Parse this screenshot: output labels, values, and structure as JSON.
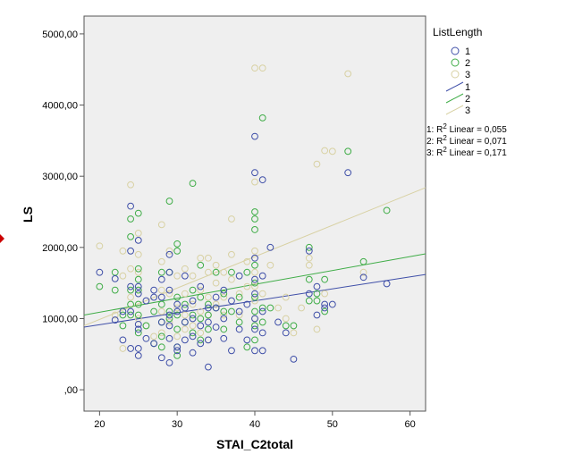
{
  "chart_data": {
    "type": "scatter",
    "title": "",
    "xlabel": "STAI_C2total",
    "ylabel": "LS",
    "xlim": [
      18,
      62
    ],
    "ylim": [
      -300,
      5250
    ],
    "x_ticks": [
      20,
      30,
      40,
      50,
      60
    ],
    "x_tick_labels": [
      "20",
      "30",
      "40",
      "50",
      "60"
    ],
    "y_ticks": [
      0,
      1000,
      2000,
      3000,
      4000,
      5000
    ],
    "y_tick_labels": [
      ",00",
      "1000,00",
      "2000,00",
      "3000,00",
      "4000,00",
      "5000,00"
    ],
    "legend": {
      "title": "ListLength",
      "position": "right",
      "marker_labels": [
        "1",
        "2",
        "3"
      ],
      "line_labels": [
        "1",
        "2",
        "3"
      ],
      "stats": [
        {
          "prefix": "1: R",
          "sup": "2",
          "suffix": " Linear = 0,055"
        },
        {
          "prefix": "2: R",
          "sup": "2",
          "suffix": " Linear = 0,071"
        },
        {
          "prefix": "3: R",
          "sup": "2",
          "suffix": " Linear = 0,171"
        }
      ]
    },
    "colors": {
      "plot_background": "#efefef",
      "series_1": "#3f4fa8",
      "series_2": "#40ad48",
      "series_3": "#d8d1a3"
    },
    "series": [
      {
        "name": "1",
        "marker": "circle-open",
        "fit_line": {
          "x": [
            18,
            62
          ],
          "y": [
            880,
            1620
          ]
        },
        "points": [
          [
            20,
            1650
          ],
          [
            22,
            1560
          ],
          [
            22,
            980
          ],
          [
            23,
            1100
          ],
          [
            23,
            700
          ],
          [
            24,
            2580
          ],
          [
            24,
            1950
          ],
          [
            24,
            1450
          ],
          [
            24,
            1100
          ],
          [
            24,
            580
          ],
          [
            25,
            2100
          ],
          [
            25,
            1450
          ],
          [
            25,
            1350
          ],
          [
            25,
            920
          ],
          [
            25,
            850
          ],
          [
            25,
            580
          ],
          [
            25,
            480
          ],
          [
            26,
            720
          ],
          [
            26,
            1250
          ],
          [
            27,
            1400
          ],
          [
            27,
            1300
          ],
          [
            27,
            650
          ],
          [
            28,
            1550
          ],
          [
            28,
            1300
          ],
          [
            28,
            950
          ],
          [
            28,
            450
          ],
          [
            29,
            1900
          ],
          [
            29,
            1650
          ],
          [
            29,
            1400
          ],
          [
            29,
            1050
          ],
          [
            29,
            900
          ],
          [
            29,
            720
          ],
          [
            29,
            380
          ],
          [
            30,
            1200
          ],
          [
            30,
            1100
          ],
          [
            30,
            600
          ],
          [
            30,
            550
          ],
          [
            31,
            1600
          ],
          [
            31,
            1150
          ],
          [
            31,
            950
          ],
          [
            31,
            700
          ],
          [
            32,
            1250
          ],
          [
            32,
            1000
          ],
          [
            32,
            750
          ],
          [
            32,
            520
          ],
          [
            33,
            1450
          ],
          [
            33,
            900
          ],
          [
            33,
            650
          ],
          [
            34,
            1150
          ],
          [
            34,
            950
          ],
          [
            34,
            700
          ],
          [
            34,
            320
          ],
          [
            35,
            1300
          ],
          [
            35,
            1150
          ],
          [
            35,
            880
          ],
          [
            36,
            1400
          ],
          [
            36,
            1000
          ],
          [
            36,
            720
          ],
          [
            37,
            1250
          ],
          [
            37,
            550
          ],
          [
            38,
            1600
          ],
          [
            38,
            1100
          ],
          [
            38,
            850
          ],
          [
            39,
            1200
          ],
          [
            39,
            700
          ],
          [
            40,
            3560
          ],
          [
            40,
            3050
          ],
          [
            40,
            1850
          ],
          [
            40,
            1550
          ],
          [
            40,
            1350
          ],
          [
            40,
            1000
          ],
          [
            40,
            850
          ],
          [
            40,
            550
          ],
          [
            41,
            2950
          ],
          [
            41,
            1600
          ],
          [
            41,
            1100
          ],
          [
            41,
            800
          ],
          [
            41,
            550
          ],
          [
            42,
            2000
          ],
          [
            43,
            950
          ],
          [
            44,
            800
          ],
          [
            45,
            430
          ],
          [
            47,
            1950
          ],
          [
            47,
            1350
          ],
          [
            48,
            1450
          ],
          [
            48,
            1050
          ],
          [
            49,
            1200
          ],
          [
            49,
            1150
          ],
          [
            50,
            1200
          ],
          [
            52,
            3050
          ],
          [
            54,
            1580
          ],
          [
            57,
            1490
          ]
        ]
      },
      {
        "name": "2",
        "marker": "circle-open",
        "fit_line": {
          "x": [
            18,
            62
          ],
          "y": [
            1050,
            1910
          ]
        },
        "points": [
          [
            20,
            1450
          ],
          [
            22,
            1650
          ],
          [
            22,
            1400
          ],
          [
            23,
            1050
          ],
          [
            23,
            900
          ],
          [
            24,
            2400
          ],
          [
            24,
            2150
          ],
          [
            24,
            1400
          ],
          [
            24,
            1200
          ],
          [
            24,
            1050
          ],
          [
            25,
            2480
          ],
          [
            25,
            1700
          ],
          [
            25,
            1550
          ],
          [
            25,
            1400
          ],
          [
            25,
            1200
          ],
          [
            25,
            1050
          ],
          [
            25,
            800
          ],
          [
            26,
            900
          ],
          [
            27,
            650
          ],
          [
            27,
            1100
          ],
          [
            28,
            1650
          ],
          [
            28,
            1200
          ],
          [
            28,
            950
          ],
          [
            28,
            750
          ],
          [
            28,
            600
          ],
          [
            29,
            2650
          ],
          [
            29,
            1650
          ],
          [
            29,
            1100
          ],
          [
            29,
            1000
          ],
          [
            30,
            2050
          ],
          [
            30,
            1950
          ],
          [
            30,
            1300
          ],
          [
            30,
            1050
          ],
          [
            30,
            850
          ],
          [
            30,
            600
          ],
          [
            30,
            480
          ],
          [
            31,
            1200
          ],
          [
            31,
            950
          ],
          [
            32,
            2900
          ],
          [
            32,
            1400
          ],
          [
            32,
            1050
          ],
          [
            32,
            800
          ],
          [
            33,
            1750
          ],
          [
            33,
            1300
          ],
          [
            33,
            1000
          ],
          [
            33,
            700
          ],
          [
            34,
            1200
          ],
          [
            34,
            1050
          ],
          [
            34,
            850
          ],
          [
            35,
            1650
          ],
          [
            35,
            1150
          ],
          [
            36,
            1350
          ],
          [
            36,
            1100
          ],
          [
            36,
            850
          ],
          [
            37,
            1650
          ],
          [
            37,
            1100
          ],
          [
            38,
            1300
          ],
          [
            38,
            950
          ],
          [
            39,
            1650
          ],
          [
            39,
            600
          ],
          [
            40,
            2500
          ],
          [
            40,
            2400
          ],
          [
            40,
            2250
          ],
          [
            40,
            1750
          ],
          [
            40,
            1500
          ],
          [
            40,
            1300
          ],
          [
            40,
            1100
          ],
          [
            40,
            900
          ],
          [
            40,
            700
          ],
          [
            41,
            3820
          ],
          [
            41,
            1150
          ],
          [
            41,
            950
          ],
          [
            42,
            1150
          ],
          [
            44,
            900
          ],
          [
            45,
            900
          ],
          [
            47,
            2000
          ],
          [
            47,
            1550
          ],
          [
            47,
            1250
          ],
          [
            48,
            1350
          ],
          [
            48,
            1250
          ],
          [
            49,
            1550
          ],
          [
            49,
            1100
          ],
          [
            52,
            3350
          ],
          [
            54,
            1800
          ],
          [
            57,
            2520
          ]
        ]
      },
      {
        "name": "3",
        "marker": "circle-open",
        "fit_line": {
          "x": [
            18,
            62
          ],
          "y": [
            900,
            2840
          ]
        },
        "points": [
          [
            20,
            2020
          ],
          [
            22,
            1050
          ],
          [
            23,
            1950
          ],
          [
            23,
            1600
          ],
          [
            23,
            580
          ],
          [
            24,
            2880
          ],
          [
            24,
            1700
          ],
          [
            24,
            1300
          ],
          [
            25,
            2200
          ],
          [
            25,
            1900
          ],
          [
            25,
            1650
          ],
          [
            25,
            1400
          ],
          [
            25,
            1000
          ],
          [
            26,
            900
          ],
          [
            27,
            750
          ],
          [
            28,
            2320
          ],
          [
            28,
            1800
          ],
          [
            28,
            1400
          ],
          [
            28,
            1100
          ],
          [
            28,
            800
          ],
          [
            29,
            1950
          ],
          [
            29,
            1350
          ],
          [
            29,
            950
          ],
          [
            30,
            1600
          ],
          [
            30,
            1150
          ],
          [
            30,
            750
          ],
          [
            31,
            1700
          ],
          [
            31,
            1350
          ],
          [
            31,
            1050
          ],
          [
            31,
            850
          ],
          [
            32,
            1600
          ],
          [
            32,
            1200
          ],
          [
            32,
            900
          ],
          [
            33,
            1850
          ],
          [
            33,
            1400
          ],
          [
            33,
            1100
          ],
          [
            33,
            800
          ],
          [
            34,
            1850
          ],
          [
            34,
            1650
          ],
          [
            34,
            1300
          ],
          [
            34,
            1050
          ],
          [
            34,
            700
          ],
          [
            35,
            1750
          ],
          [
            35,
            1500
          ],
          [
            35,
            1200
          ],
          [
            36,
            1650
          ],
          [
            36,
            1300
          ],
          [
            36,
            1050
          ],
          [
            37,
            2400
          ],
          [
            37,
            1900
          ],
          [
            37,
            1550
          ],
          [
            38,
            1350
          ],
          [
            38,
            1050
          ],
          [
            39,
            1800
          ],
          [
            39,
            1450
          ],
          [
            40,
            4520
          ],
          [
            40,
            2920
          ],
          [
            40,
            1950
          ],
          [
            40,
            1650
          ],
          [
            40,
            1450
          ],
          [
            40,
            1250
          ],
          [
            40,
            1000
          ],
          [
            41,
            4520
          ],
          [
            41,
            1350
          ],
          [
            42,
            1750
          ],
          [
            43,
            1150
          ],
          [
            44,
            1300
          ],
          [
            44,
            1000
          ],
          [
            45,
            800
          ],
          [
            46,
            1150
          ],
          [
            47,
            1850
          ],
          [
            47,
            1750
          ],
          [
            48,
            3170
          ],
          [
            48,
            850
          ],
          [
            49,
            3360
          ],
          [
            49,
            1350
          ],
          [
            50,
            3350
          ],
          [
            52,
            4440
          ],
          [
            54,
            1650
          ]
        ]
      }
    ]
  }
}
